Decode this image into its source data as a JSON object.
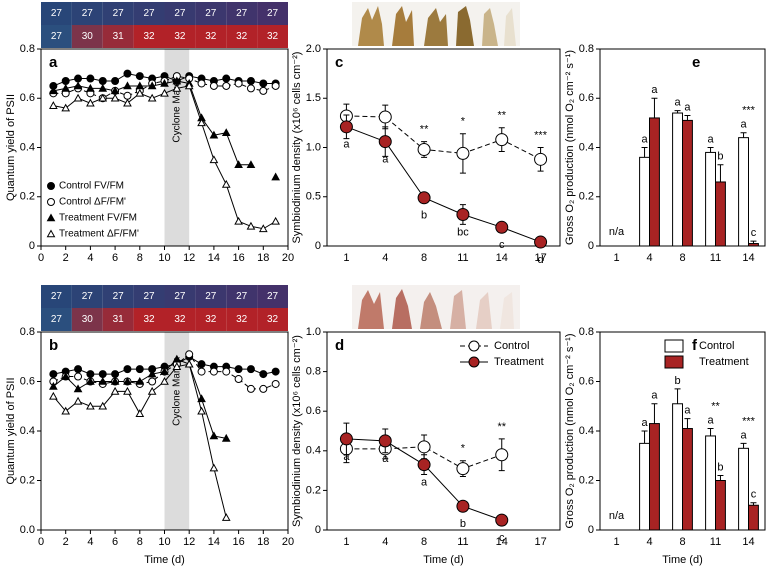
{
  "chart_data": [
    {
      "type": "line",
      "panel": "a",
      "ylabel": "Quantum yield of PSII",
      "xlim": [
        0,
        20
      ],
      "xticks": [
        0,
        2,
        4,
        6,
        8,
        10,
        12,
        14,
        16,
        18,
        20
      ],
      "ylim": [
        0,
        0.8
      ],
      "yticks": [
        0,
        0.2,
        0.4,
        0.6,
        0.8
      ],
      "temperature": [
        [
          27,
          27,
          27,
          27,
          27,
          27,
          27,
          27
        ],
        [
          27,
          30,
          31,
          32,
          32,
          32,
          32,
          32
        ]
      ],
      "shade": [
        10,
        12
      ],
      "shade_label": "Cyclone Marcia",
      "legend": "lower left",
      "x": [
        1,
        2,
        3,
        4,
        5,
        6,
        7,
        8,
        9,
        10,
        11,
        12,
        13,
        14,
        15,
        16,
        17,
        18,
        19
      ],
      "series": [
        {
          "name": "Control FV/FM",
          "color": "#000000",
          "marker": "circle",
          "dashed": false,
          "values": [
            0.65,
            0.67,
            0.68,
            0.68,
            0.67,
            0.67,
            0.7,
            0.69,
            0.68,
            0.69,
            0.67,
            0.69,
            0.68,
            0.67,
            0.68,
            0.67,
            0.67,
            0.66,
            0.66
          ]
        },
        {
          "name": "Control ΔF/FM'",
          "color": "#ffffff",
          "marker": "circle",
          "dashed": true,
          "values": [
            0.62,
            0.62,
            0.64,
            0.62,
            0.6,
            0.63,
            0.61,
            0.63,
            0.66,
            0.67,
            0.69,
            0.68,
            0.66,
            0.65,
            0.65,
            0.66,
            0.64,
            0.63,
            0.65
          ]
        },
        {
          "name": "Treatment FV/FM",
          "color": "#000000",
          "marker": "triangle",
          "dashed": false,
          "values": [
            0.63,
            0.64,
            0.65,
            0.64,
            0.64,
            0.63,
            0.65,
            0.65,
            0.65,
            0.66,
            0.67,
            0.66,
            0.52,
            0.45,
            0.46,
            0.33,
            0.33,
            null,
            0.28
          ]
        },
        {
          "name": "Treatment ΔF/FM'",
          "color": "#ffffff",
          "marker": "triangle",
          "dashed": false,
          "values": [
            0.57,
            0.56,
            0.6,
            0.58,
            0.6,
            0.6,
            0.58,
            0.62,
            0.6,
            0.62,
            0.64,
            0.65,
            0.5,
            0.35,
            0.25,
            0.1,
            0.08,
            0.07,
            0.1
          ]
        }
      ]
    },
    {
      "type": "line",
      "panel": "c",
      "ylabel": "Symbiodinium density (x10⁶ cells cm⁻²)",
      "categories": [
        "1",
        "4",
        "8",
        "11",
        "14",
        "17"
      ],
      "ylim": [
        0,
        2
      ],
      "yticks": [
        0,
        0.5,
        {
          "value": 1,
          "label": "1.0"
        },
        1.5,
        {
          "value": 2,
          "label": "2.0"
        }
      ],
      "series": [
        {
          "color": "#ffffff",
          "marker": "circle",
          "dashed": true,
          "values": [
            1.32,
            1.31,
            0.98,
            0.94,
            1.08,
            0.88
          ],
          "errors": [
            0.12,
            0.12,
            0.08,
            0.2,
            0.12,
            0.12
          ]
        },
        {
          "color": "#a82323",
          "marker": "circle",
          "dashed": false,
          "values": [
            1.21,
            1.06,
            0.49,
            0.32,
            0.19,
            0.04
          ],
          "errors": [
            0.12,
            0.15,
            0.05,
            0.1,
            0.05,
            0.02
          ],
          "labels": [
            "a",
            "a",
            "b",
            "bc",
            "c",
            "d"
          ]
        }
      ],
      "significance": [
        null,
        null,
        "**",
        "*",
        "**",
        "***"
      ]
    },
    {
      "type": "bar",
      "panel": "e",
      "ylabel": "Gross O₂ production (nmol O₂ cm⁻² s⁻¹)",
      "categories": [
        "1",
        "4",
        "8",
        "11",
        "14"
      ],
      "ylim": [
        0,
        0.8
      ],
      "yticks": [
        0,
        0.2,
        0.4,
        0.6,
        0.8
      ],
      "missing_label": "n/a",
      "series": [
        {
          "color": "#ffffff",
          "values": [
            null,
            0.36,
            0.54,
            0.38,
            0.44
          ],
          "errors": [
            null,
            0.04,
            0.01,
            0.02,
            0.02
          ],
          "labels": [
            null,
            "a",
            "a",
            "a",
            "a"
          ]
        },
        {
          "color": "#a82323",
          "values": [
            null,
            0.52,
            0.51,
            0.26,
            0.01
          ],
          "errors": [
            null,
            0.08,
            0.02,
            0.07,
            0.01
          ],
          "labels": [
            null,
            "a",
            "a",
            "b",
            "c"
          ]
        }
      ],
      "significance": [
        null,
        null,
        null,
        null,
        "***"
      ]
    },
    {
      "type": "line",
      "panel": "b",
      "ylabel": "Quantum yield of PSII",
      "xlabel": "Time (d)",
      "xlim": [
        0,
        20
      ],
      "xticks": [
        0,
        2,
        4,
        6,
        8,
        10,
        12,
        14,
        16,
        18,
        20
      ],
      "ylim": [
        0,
        0.8
      ],
      "yticks": [
        {
          "value": 0,
          "label": "0.0"
        },
        0.2,
        0.4,
        0.6,
        0.8
      ],
      "temperature": [
        [
          27,
          27,
          27,
          27,
          27,
          27,
          27,
          27
        ],
        [
          27,
          30,
          31,
          32,
          32,
          32,
          32,
          32
        ]
      ],
      "shade": [
        10,
        12
      ],
      "shade_label": "Cyclone Marcia",
      "x": [
        1,
        2,
        3,
        4,
        5,
        6,
        7,
        8,
        9,
        10,
        11,
        12,
        13,
        14,
        15,
        16,
        17,
        18,
        19
      ],
      "series": [
        {
          "color": "#000000",
          "marker": "circle",
          "dashed": false,
          "values": [
            0.63,
            0.64,
            0.65,
            0.63,
            0.63,
            0.63,
            0.65,
            0.65,
            0.65,
            0.66,
            0.67,
            0.7,
            0.67,
            0.66,
            0.66,
            0.65,
            0.65,
            0.63,
            0.64
          ]
        },
        {
          "color": "#ffffff",
          "marker": "circle",
          "dashed": true,
          "values": [
            0.6,
            0.62,
            0.62,
            0.6,
            0.59,
            0.6,
            0.6,
            0.59,
            0.6,
            0.64,
            0.67,
            0.71,
            0.64,
            0.64,
            0.64,
            0.61,
            0.57,
            0.57,
            0.59
          ]
        },
        {
          "color": "#000000",
          "marker": "triangle",
          "dashed": false,
          "values": [
            0.58,
            0.62,
            0.57,
            0.6,
            0.6,
            0.6,
            0.6,
            0.6,
            0.63,
            0.64,
            0.69,
            0.67,
            0.53,
            0.38,
            0.37,
            null,
            null,
            null,
            null
          ]
        },
        {
          "color": "#ffffff",
          "marker": "triangle",
          "dashed": false,
          "values": [
            0.54,
            0.48,
            0.52,
            0.5,
            0.5,
            0.56,
            0.56,
            0.47,
            0.56,
            0.6,
            0.66,
            0.67,
            0.48,
            0.25,
            0.05,
            null,
            null,
            null,
            null
          ]
        }
      ]
    },
    {
      "type": "line",
      "panel": "d",
      "ylabel": "Symbiodinium density (x10⁶ cells cm⁻²)",
      "xlabel": "Time  (d)",
      "categories": [
        "1",
        "4",
        "8",
        "11",
        "14",
        "17"
      ],
      "legend": "upper right",
      "ylim": [
        0,
        1
      ],
      "yticks": [
        0,
        0.2,
        0.4,
        0.6,
        0.8,
        {
          "value": 1,
          "label": "1.0"
        }
      ],
      "series": [
        {
          "name": "Control",
          "color": "#ffffff",
          "marker": "circle",
          "dashed": true,
          "values": [
            0.41,
            0.41,
            0.42,
            0.31,
            0.38,
            null
          ],
          "errors": [
            0.07,
            0.05,
            0.06,
            0.04,
            0.08,
            null
          ]
        },
        {
          "name": "Treatment",
          "color": "#a82323",
          "marker": "circle",
          "dashed": false,
          "values": [
            0.46,
            0.45,
            0.33,
            0.12,
            0.05,
            null
          ],
          "errors": [
            0.08,
            0.06,
            0.05,
            0.02,
            0.01,
            null
          ],
          "labels": [
            "a",
            "a",
            "a",
            "b",
            "c",
            null
          ]
        }
      ],
      "significance": [
        null,
        null,
        null,
        "*",
        "**",
        null
      ]
    },
    {
      "type": "bar",
      "panel": "f",
      "ylabel": "Gross O₂ production (nmol O₂ cm⁻² s⁻¹)",
      "xlabel": "Time  (d)",
      "categories": [
        "1",
        "4",
        "8",
        "11",
        "14"
      ],
      "legend": "upper right",
      "ylim": [
        0,
        0.8
      ],
      "yticks": [
        0,
        0.2,
        0.4,
        0.6,
        0.8
      ],
      "missing_label": "n/a",
      "series": [
        {
          "name": "Control",
          "color": "#ffffff",
          "values": [
            null,
            0.35,
            0.51,
            0.38,
            0.33
          ],
          "errors": [
            null,
            0.05,
            0.06,
            0.03,
            0.02
          ],
          "labels": [
            null,
            "a",
            "b",
            "a",
            "a"
          ]
        },
        {
          "name": "Treatment",
          "color": "#a82323",
          "values": [
            null,
            0.43,
            0.41,
            0.2,
            0.1
          ],
          "errors": [
            null,
            0.08,
            0.04,
            0.02,
            0.01
          ],
          "labels": [
            null,
            "a",
            "a",
            "b",
            "c"
          ]
        }
      ],
      "significance": [
        null,
        null,
        null,
        "**",
        "***"
      ]
    }
  ]
}
